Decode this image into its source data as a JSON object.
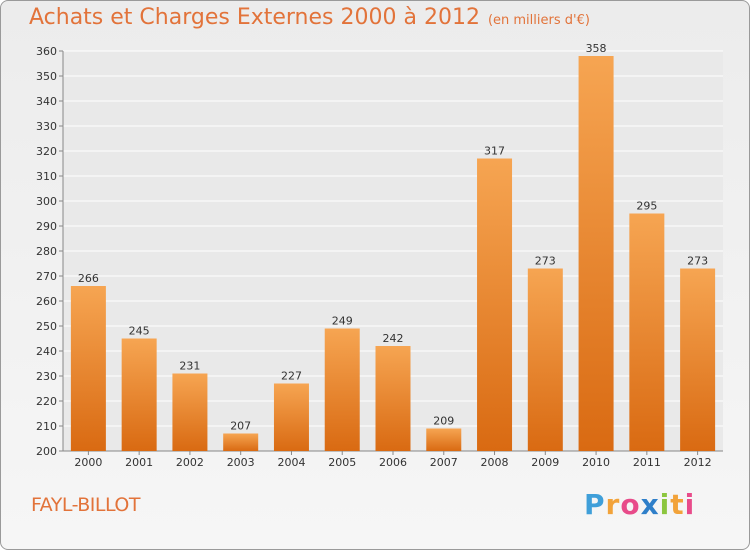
{
  "title": "Achats et Charges Externes 2000 à 2012",
  "unit_label": "(en milliers d'€)",
  "commune": "FAYL-BILLOT",
  "brand": {
    "letters": [
      "P",
      "r",
      "o",
      "x",
      "i",
      "t",
      "i"
    ],
    "colors": [
      "#3f9fd9",
      "#f2a33a",
      "#e84b8a",
      "#2f7fc9",
      "#8cc63f",
      "#f2a33a",
      "#e84b8a"
    ]
  },
  "colors": {
    "bar_top": "#f6a552",
    "bar_bottom": "#d96a12",
    "title": "#e2733a",
    "grid": "#ffffff",
    "text": "#333333"
  },
  "chart_data": {
    "type": "bar",
    "categories": [
      "2000",
      "2001",
      "2002",
      "2003",
      "2004",
      "2005",
      "2006",
      "2007",
      "2008",
      "2009",
      "2010",
      "2011",
      "2012"
    ],
    "values": [
      266,
      245,
      231,
      207,
      227,
      249,
      242,
      209,
      317,
      273,
      358,
      295,
      273
    ],
    "ylim": [
      200,
      360
    ],
    "ytick_step": 10,
    "grid": true,
    "xlabel": "",
    "ylabel": ""
  }
}
